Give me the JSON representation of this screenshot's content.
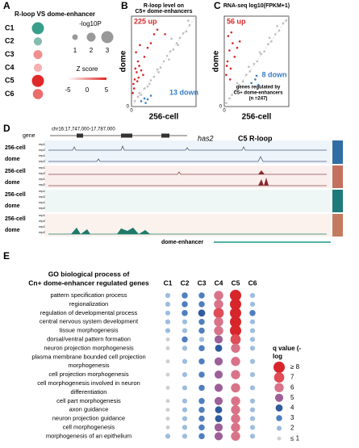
{
  "panel_a": {
    "letter": "A",
    "title": "R-loop VS dome-enhancer",
    "size_title": "-log10P",
    "size_ticks": [
      1,
      2,
      3
    ],
    "z_title": "Z score",
    "zlim": [
      -5,
      5
    ],
    "z_ticks": [
      -5,
      0,
      5
    ],
    "clusters": [
      {
        "label": "C1",
        "neg_log10_p": 3,
        "z": -5
      },
      {
        "label": "C2",
        "neg_log10_p": 1.8,
        "z": -3
      },
      {
        "label": "C3",
        "neg_log10_p": 2,
        "z": 2
      },
      {
        "label": "C4",
        "neg_log10_p": 1.8,
        "z": 1
      },
      {
        "label": "C5",
        "neg_log10_p": 3,
        "z": 5
      },
      {
        "label": "C6",
        "neg_log10_p": 2.4,
        "z": 3
      }
    ]
  },
  "panel_b": {
    "letter": "B",
    "title": [
      "R-loop level on",
      "C5+ dome-enhancers"
    ],
    "xlabel": "256-cell",
    "ylabel": "dome",
    "up_label": "225 up",
    "down_label": "13 down",
    "xlim": [
      0,
      10
    ],
    "ylim": [
      0,
      10
    ],
    "xticks": [
      0
    ],
    "yticks": [
      0
    ],
    "up_points": {
      "color": "#d62728",
      "x": [
        0.3,
        0.5,
        0.6,
        0.8,
        1.0,
        1.2,
        0.4,
        0.7,
        1.5,
        2.0,
        2.5,
        3.0,
        3.5,
        1.1,
        0.9,
        1.8,
        4.0,
        5.2,
        0.2,
        1.3
      ],
      "y": [
        2.5,
        3.0,
        4.2,
        3.8,
        5.0,
        4.5,
        2.0,
        6.0,
        4.0,
        5.5,
        6.5,
        7.0,
        8.0,
        3.2,
        2.8,
        3.5,
        8.5,
        8.0,
        1.5,
        6.8
      ]
    },
    "down_points": {
      "color": "#3a7dc4",
      "x": [
        1.5,
        2.0,
        2.5,
        3.0,
        2.2
      ],
      "y": [
        0.6,
        0.9,
        0.8,
        1.2,
        0.4
      ]
    },
    "other_points": {
      "color": "#bdbdbd",
      "x": [
        0.5,
        1,
        1.5,
        2,
        2.5,
        3,
        3.5,
        4,
        4.5,
        5,
        5.5,
        6,
        6.5,
        7,
        7.5,
        8,
        8.5,
        9,
        1.2,
        2.8,
        4.2,
        5.8,
        7.2,
        6.2,
        8.8
      ],
      "y": [
        0.6,
        1.1,
        1.3,
        2.0,
        2.2,
        2.9,
        3.3,
        4.1,
        4.3,
        5.0,
        5.6,
        6.1,
        6.3,
        7.0,
        7.6,
        8.1,
        8.3,
        9.0,
        1.5,
        2.5,
        3.8,
        5.2,
        6.8,
        7.5,
        9.5
      ]
    }
  },
  "panel_c": {
    "letter": "C",
    "title": [
      "RNA-seq log10(FPKM+1)"
    ],
    "xlabel": "256-cell",
    "ylabel": "dome",
    "up_label": "56 up",
    "down_label": "8 down",
    "note": [
      "genes regulated by",
      "C5+ dome-enhancers",
      "(n =247)"
    ],
    "xlim": [
      0,
      10
    ],
    "ylim": [
      0,
      10
    ],
    "xticks": [
      0
    ],
    "yticks": [
      0
    ],
    "up_points": {
      "color": "#d62728",
      "x": [
        0.3,
        0.5,
        0.8,
        1.0,
        1.3,
        0.6,
        1.6,
        2.0,
        0.4,
        1.1,
        2.4,
        0.9
      ],
      "y": [
        3.5,
        5.0,
        6.2,
        4.2,
        7.0,
        7.8,
        5.5,
        6.5,
        4.5,
        8.2,
        7.2,
        3.0
      ]
    },
    "down_points": {
      "color": "#3a7dc4",
      "x": [
        4.2,
        4.8,
        5.3,
        5.0
      ],
      "y": [
        2.6,
        3.0,
        2.4,
        3.4
      ]
    },
    "other_points": {
      "color": "#bdbdbd",
      "x": [
        0.3,
        0.8,
        1.2,
        1.8,
        2.3,
        2.9,
        3.4,
        4.0,
        4.6,
        5.1,
        5.7,
        6.2,
        6.8,
        7.3,
        7.9,
        8.5,
        9.1,
        9.6,
        2.0,
        3.8,
        5.5,
        7.0,
        8.2
      ],
      "y": [
        0.4,
        0.9,
        1.3,
        1.7,
        2.4,
        2.8,
        3.5,
        3.9,
        4.7,
        5.0,
        5.8,
        6.1,
        6.9,
        7.2,
        8.0,
        8.4,
        9.2,
        9.5,
        2.6,
        4.4,
        6.0,
        7.6,
        8.9
      ]
    }
  },
  "panel_d": {
    "letter": "D",
    "locus": "chr16:17,747,000-17,787,000",
    "gene_label": "gene",
    "gene_name": "has2",
    "region_label": "C5 R-loop",
    "enhancer_label": "dome-enhancer",
    "tracks": [
      {
        "label": "256-cell",
        "reps": [
          "rep1",
          "rep2"
        ]
      },
      {
        "label": "dome",
        "reps": [
          "rep1",
          "rep2"
        ]
      },
      {
        "label": "256-cell",
        "reps": [
          "rep1",
          "rep2"
        ]
      },
      {
        "label": "dome",
        "reps": [
          "rep1",
          "rep2"
        ]
      },
      {
        "label": "256-cell",
        "reps": [
          "rep1",
          "rep2"
        ]
      },
      {
        "label": "dome",
        "reps": [
          "rep1",
          "rep2"
        ]
      },
      {
        "label": "256-cell",
        "reps": [
          "rep1",
          "rep2"
        ]
      },
      {
        "label": "dome",
        "reps": [
          "rep1",
          "rep2"
        ]
      }
    ]
  },
  "panel_e": {
    "letter": "E",
    "title": [
      "GO biological process of",
      "Cn+ dome-enhancer regulated genes"
    ],
    "columns": [
      "C1",
      "C2",
      "C3",
      "C4",
      "C5",
      "C6"
    ],
    "terms": [
      {
        "label": [
          "pattern specification process"
        ],
        "levels": [
          2,
          3,
          3,
          6,
          8,
          2
        ]
      },
      {
        "label": [
          "regionalization"
        ],
        "levels": [
          2,
          3,
          3,
          6,
          8,
          2
        ]
      },
      {
        "label": [
          "regulation of developmental process"
        ],
        "levels": [
          2,
          3,
          4,
          7,
          8,
          3
        ]
      },
      {
        "label": [
          "central nervous system development"
        ],
        "levels": [
          2,
          2,
          3,
          6,
          8,
          2
        ]
      },
      {
        "label": [
          "tissue morphogenesis"
        ],
        "levels": [
          2,
          2,
          3,
          6,
          8,
          2
        ]
      },
      {
        "label": [
          "dorsal/ventral pattern formation"
        ],
        "levels": [
          1,
          3,
          2,
          5,
          7,
          2
        ]
      },
      {
        "label": [
          "neuron projection morphogenesis"
        ],
        "levels": [
          1,
          2,
          3,
          4,
          6,
          2
        ]
      },
      {
        "label": [
          "plasma membrane bounded cell projection",
          "morphogenesis"
        ],
        "levels": [
          1,
          2,
          3,
          5,
          6,
          2
        ]
      },
      {
        "label": [
          "cell projection morphogenesis"
        ],
        "levels": [
          1,
          2,
          3,
          5,
          6,
          2
        ]
      },
      {
        "label": [
          "cell morphogenesis involved in neuron",
          "differentiation"
        ],
        "levels": [
          1,
          2,
          3,
          5,
          6,
          2
        ]
      },
      {
        "label": [
          "cell part morphogenesis"
        ],
        "levels": [
          1,
          2,
          3,
          5,
          6,
          2
        ]
      },
      {
        "label": [
          "axon guidance"
        ],
        "levels": [
          1,
          2,
          3,
          4,
          6,
          2
        ]
      },
      {
        "label": [
          "neuron projection guidance"
        ],
        "levels": [
          1,
          2,
          3,
          4,
          6,
          2
        ]
      },
      {
        "label": [
          "cell morphogenesis"
        ],
        "levels": [
          1,
          2,
          3,
          5,
          6,
          2
        ]
      },
      {
        "label": [
          "morphogenesis of an epithelium"
        ],
        "levels": [
          2,
          2,
          3,
          5,
          6,
          2
        ]
      }
    ],
    "legend": {
      "title": [
        "q value (-",
        "log"
      ],
      "levels": [
        {
          "value": 8,
          "label": "≥ 8"
        },
        7,
        6,
        5,
        4,
        3,
        2,
        {
          "value": 1,
          "label": "≤ 1"
        }
      ],
      "colors": [
        "#d7262b",
        "#e04c57",
        "#d9738a",
        "#9c5f98",
        "#2f5c9e",
        "#4f7fbf",
        "#9dbde0",
        "#cfcfcf"
      ]
    }
  }
}
